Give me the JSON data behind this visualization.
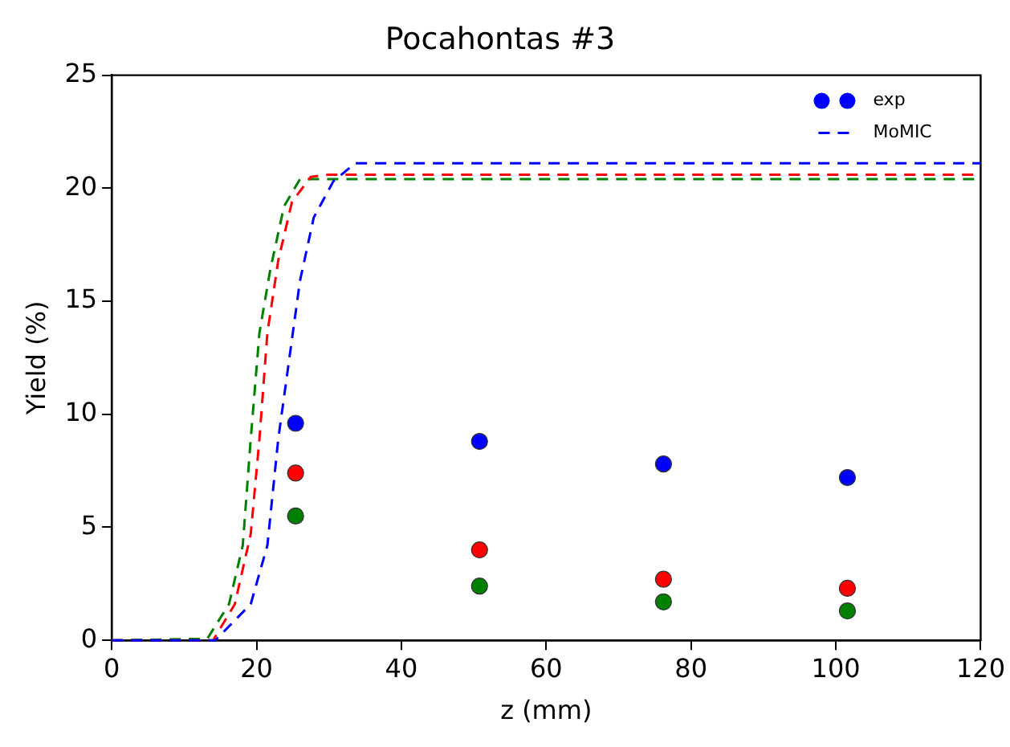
{
  "chart_data": {
    "type": "scatter",
    "title": "Pocahontas #3",
    "xlabel": "z (mm)",
    "ylabel": "Yield (%)",
    "xlim": [
      0,
      120
    ],
    "xticks": [
      0,
      20,
      40,
      60,
      80,
      100,
      120
    ],
    "ylim": [
      0,
      25
    ],
    "yticks": [
      0,
      5,
      10,
      15,
      20,
      25
    ],
    "grid": false,
    "legend": "top right",
    "series": [
      {
        "name": "exp",
        "type": "scatter",
        "marker": "circle",
        "color": "#0000ff",
        "x": [
          25.4,
          50.8,
          76.2,
          101.6
        ],
        "values": [
          9.6,
          8.8,
          7.8,
          7.2
        ]
      },
      {
        "type": "scatter",
        "marker": "circle",
        "color": "#ff0000",
        "x": [
          25.4,
          50.8,
          76.2,
          101.6
        ],
        "values": [
          7.4,
          4.0,
          2.7,
          2.3
        ]
      },
      {
        "type": "scatter",
        "marker": "circle",
        "color": "#008000",
        "x": [
          25.4,
          50.8,
          76.2,
          101.6
        ],
        "values": [
          5.5,
          2.4,
          1.7,
          1.3
        ]
      },
      {
        "name": "MoMIC",
        "type": "line",
        "marker": "none",
        "line_style": "dashed",
        "color": "#0000ff",
        "x": [
          0,
          14.3,
          19.2,
          21.5,
          23,
          24.5,
          26,
          27.9,
          30.6,
          33.6,
          40,
          120
        ],
        "values": [
          0,
          0,
          1.6,
          4.2,
          8.9,
          12.4,
          15.9,
          18.7,
          20.3,
          21.1,
          21.1,
          21.1
        ]
      },
      {
        "type": "line",
        "marker": "none",
        "line_style": "dashed",
        "color": "#ff0000",
        "x": [
          0,
          14,
          17,
          19.2,
          20.4,
          21.5,
          23,
          24.9,
          27.5,
          30,
          120
        ],
        "values": [
          0,
          0,
          1.6,
          4.7,
          8.9,
          13.6,
          16.8,
          19.4,
          20.5,
          20.6,
          20.6
        ]
      },
      {
        "type": "line",
        "marker": "none",
        "line_style": "dashed",
        "color": "#008000",
        "x": [
          0,
          13.2,
          16.2,
          18.1,
          19.2,
          20.4,
          21.9,
          23.8,
          26,
          27.5,
          120
        ],
        "values": [
          0,
          0.07,
          1.6,
          4.2,
          8.9,
          13.6,
          16.4,
          19.2,
          20.4,
          20.4,
          20.4
        ]
      }
    ]
  }
}
